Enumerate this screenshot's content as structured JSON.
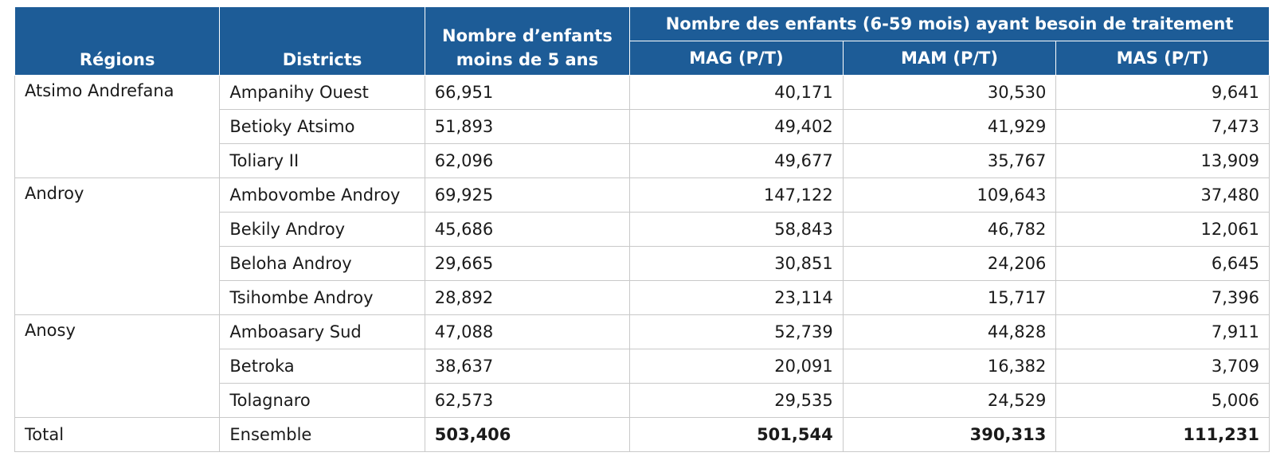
{
  "header": {
    "regions": "Régions",
    "districts": "Districts",
    "children_under5": "Nombre d’enfants moins de 5 ans",
    "group_title": "Nombre des enfants (6-59 mois) ayant besoin de traitement",
    "mag": "MAG (P/T)",
    "mam": "MAM (P/T)",
    "mas": "MAS (P/T)"
  },
  "groups": [
    {
      "region": "Atsimo Andrefana",
      "rows": [
        {
          "district": "Ampanihy Ouest",
          "under5": "66,951",
          "mag": "40,171",
          "mam": "30,530",
          "mas": "9,641"
        },
        {
          "district": "Betioky Atsimo",
          "under5": "51,893",
          "mag": "49,402",
          "mam": "41,929",
          "mas": "7,473"
        },
        {
          "district": "Toliary II",
          "under5": "62,096",
          "mag": "49,677",
          "mam": "35,767",
          "mas": "13,909"
        }
      ]
    },
    {
      "region": "Androy",
      "rows": [
        {
          "district": "Ambovombe Androy",
          "under5": "69,925",
          "mag": "147,122",
          "mam": "109,643",
          "mas": "37,480"
        },
        {
          "district": "Bekily Androy",
          "under5": "45,686",
          "mag": "58,843",
          "mam": "46,782",
          "mas": "12,061"
        },
        {
          "district": "Beloha Androy",
          "under5": "29,665",
          "mag": "30,851",
          "mam": "24,206",
          "mas": "6,645"
        },
        {
          "district": "Tsihombe Androy",
          "under5": "28,892",
          "mag": "23,114",
          "mam": "15,717",
          "mas": "7,396"
        }
      ]
    },
    {
      "region": "Anosy",
      "rows": [
        {
          "district": "Amboasary Sud",
          "under5": "47,088",
          "mag": "52,739",
          "mam": "44,828",
          "mas": "7,911"
        },
        {
          "district": "Betroka",
          "under5": "38,637",
          "mag": "20,091",
          "mam": "16,382",
          "mas": "3,709"
        },
        {
          "district": "Tolagnaro",
          "under5": "62,573",
          "mag": "29,535",
          "mam": "24,529",
          "mas": "5,006"
        }
      ]
    }
  ],
  "total": {
    "region": "Total",
    "district": "Ensemble",
    "under5": "503,406",
    "mag": "501,544",
    "mam": "390,313",
    "mas": "111,231"
  }
}
